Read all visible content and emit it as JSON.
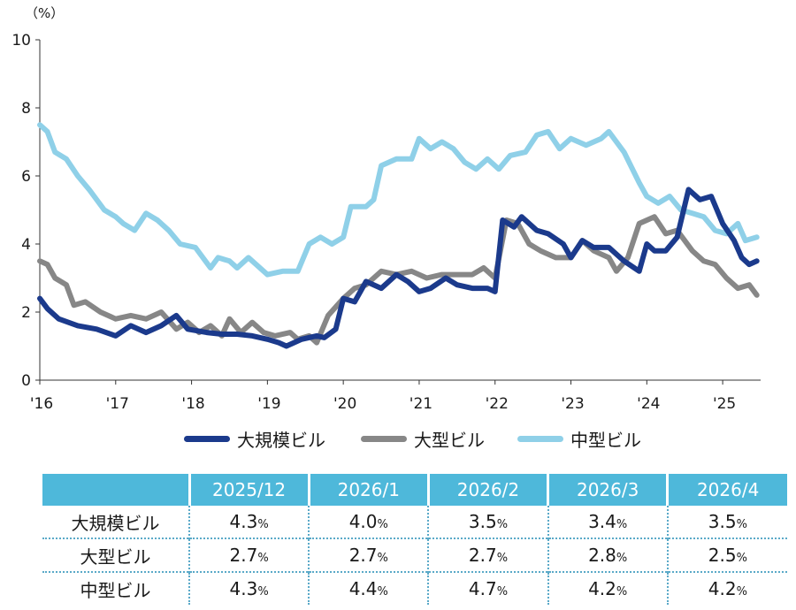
{
  "chart_data": {
    "type": "line",
    "unit_label": "（%）",
    "ylim": [
      0,
      10
    ],
    "y_ticks": [
      "0",
      "2",
      "4",
      "6",
      "8",
      "10"
    ],
    "x_ticks": [
      "'16",
      "'17",
      "'18",
      "'19",
      "'20",
      "'21",
      "'22",
      "'23",
      "'24",
      "'25"
    ],
    "x_start": 2016.0,
    "x_end": 2025.5,
    "grid": false,
    "legend_position": "bottom",
    "series": [
      {
        "name": "大規模ビル",
        "color": "#1b3a8c",
        "points": [
          [
            2016.0,
            2.4
          ],
          [
            2016.1,
            2.1
          ],
          [
            2016.25,
            1.8
          ],
          [
            2016.5,
            1.6
          ],
          [
            2016.75,
            1.5
          ],
          [
            2017.0,
            1.3
          ],
          [
            2017.2,
            1.6
          ],
          [
            2017.4,
            1.4
          ],
          [
            2017.6,
            1.6
          ],
          [
            2017.8,
            1.9
          ],
          [
            2017.95,
            1.5
          ],
          [
            2018.2,
            1.4
          ],
          [
            2018.4,
            1.35
          ],
          [
            2018.6,
            1.35
          ],
          [
            2018.8,
            1.3
          ],
          [
            2019.0,
            1.2
          ],
          [
            2019.15,
            1.1
          ],
          [
            2019.25,
            1.0
          ],
          [
            2019.45,
            1.2
          ],
          [
            2019.65,
            1.3
          ],
          [
            2019.75,
            1.25
          ],
          [
            2019.9,
            1.5
          ],
          [
            2020.0,
            2.4
          ],
          [
            2020.15,
            2.3
          ],
          [
            2020.3,
            2.9
          ],
          [
            2020.5,
            2.7
          ],
          [
            2020.7,
            3.1
          ],
          [
            2020.85,
            2.9
          ],
          [
            2021.0,
            2.6
          ],
          [
            2021.15,
            2.7
          ],
          [
            2021.35,
            3.0
          ],
          [
            2021.5,
            2.8
          ],
          [
            2021.7,
            2.7
          ],
          [
            2021.9,
            2.7
          ],
          [
            2022.0,
            2.6
          ],
          [
            2022.1,
            4.7
          ],
          [
            2022.25,
            4.5
          ],
          [
            2022.35,
            4.8
          ],
          [
            2022.55,
            4.4
          ],
          [
            2022.7,
            4.3
          ],
          [
            2022.9,
            4.0
          ],
          [
            2023.0,
            3.6
          ],
          [
            2023.15,
            4.1
          ],
          [
            2023.3,
            3.9
          ],
          [
            2023.5,
            3.9
          ],
          [
            2023.7,
            3.5
          ],
          [
            2023.9,
            3.2
          ],
          [
            2024.0,
            4.0
          ],
          [
            2024.1,
            3.8
          ],
          [
            2024.25,
            3.8
          ],
          [
            2024.4,
            4.2
          ],
          [
            2024.55,
            5.6
          ],
          [
            2024.7,
            5.3
          ],
          [
            2024.85,
            5.4
          ],
          [
            2025.0,
            4.6
          ],
          [
            2025.15,
            4.1
          ],
          [
            2025.25,
            3.6
          ],
          [
            2025.35,
            3.4
          ],
          [
            2025.45,
            3.5
          ]
        ]
      },
      {
        "name": "大型ビル",
        "color": "#878787",
        "points": [
          [
            2016.0,
            3.5
          ],
          [
            2016.1,
            3.4
          ],
          [
            2016.2,
            3.0
          ],
          [
            2016.35,
            2.8
          ],
          [
            2016.45,
            2.2
          ],
          [
            2016.6,
            2.3
          ],
          [
            2016.8,
            2.0
          ],
          [
            2017.0,
            1.8
          ],
          [
            2017.2,
            1.9
          ],
          [
            2017.4,
            1.8
          ],
          [
            2017.6,
            2.0
          ],
          [
            2017.8,
            1.5
          ],
          [
            2017.95,
            1.7
          ],
          [
            2018.1,
            1.4
          ],
          [
            2018.25,
            1.6
          ],
          [
            2018.4,
            1.3
          ],
          [
            2018.5,
            1.8
          ],
          [
            2018.65,
            1.4
          ],
          [
            2018.8,
            1.7
          ],
          [
            2018.95,
            1.4
          ],
          [
            2019.1,
            1.3
          ],
          [
            2019.3,
            1.4
          ],
          [
            2019.4,
            1.2
          ],
          [
            2019.55,
            1.3
          ],
          [
            2019.65,
            1.1
          ],
          [
            2019.8,
            1.9
          ],
          [
            2020.0,
            2.4
          ],
          [
            2020.15,
            2.7
          ],
          [
            2020.3,
            2.8
          ],
          [
            2020.5,
            3.2
          ],
          [
            2020.7,
            3.1
          ],
          [
            2020.9,
            3.2
          ],
          [
            2021.1,
            3.0
          ],
          [
            2021.3,
            3.1
          ],
          [
            2021.5,
            3.1
          ],
          [
            2021.7,
            3.1
          ],
          [
            2021.85,
            3.3
          ],
          [
            2022.0,
            3.0
          ],
          [
            2022.15,
            4.7
          ],
          [
            2022.3,
            4.6
          ],
          [
            2022.45,
            4.0
          ],
          [
            2022.6,
            3.8
          ],
          [
            2022.8,
            3.6
          ],
          [
            2023.0,
            3.6
          ],
          [
            2023.15,
            4.1
          ],
          [
            2023.3,
            3.8
          ],
          [
            2023.5,
            3.6
          ],
          [
            2023.6,
            3.2
          ],
          [
            2023.75,
            3.6
          ],
          [
            2023.9,
            4.6
          ],
          [
            2024.1,
            4.8
          ],
          [
            2024.25,
            4.3
          ],
          [
            2024.4,
            4.4
          ],
          [
            2024.6,
            3.8
          ],
          [
            2024.75,
            3.5
          ],
          [
            2024.9,
            3.4
          ],
          [
            2025.05,
            3.0
          ],
          [
            2025.2,
            2.7
          ],
          [
            2025.35,
            2.8
          ],
          [
            2025.45,
            2.5
          ]
        ]
      },
      {
        "name": "中型ビル",
        "color": "#8fd0e8",
        "points": [
          [
            2016.0,
            7.5
          ],
          [
            2016.1,
            7.3
          ],
          [
            2016.2,
            6.7
          ],
          [
            2016.35,
            6.5
          ],
          [
            2016.5,
            6.0
          ],
          [
            2016.65,
            5.6
          ],
          [
            2016.85,
            5.0
          ],
          [
            2017.0,
            4.8
          ],
          [
            2017.1,
            4.6
          ],
          [
            2017.25,
            4.4
          ],
          [
            2017.4,
            4.9
          ],
          [
            2017.55,
            4.7
          ],
          [
            2017.7,
            4.4
          ],
          [
            2017.85,
            4.0
          ],
          [
            2018.05,
            3.9
          ],
          [
            2018.25,
            3.3
          ],
          [
            2018.35,
            3.6
          ],
          [
            2018.5,
            3.5
          ],
          [
            2018.6,
            3.3
          ],
          [
            2018.75,
            3.6
          ],
          [
            2019.0,
            3.1
          ],
          [
            2019.2,
            3.2
          ],
          [
            2019.4,
            3.2
          ],
          [
            2019.55,
            4.0
          ],
          [
            2019.7,
            4.2
          ],
          [
            2019.85,
            4.0
          ],
          [
            2020.0,
            4.2
          ],
          [
            2020.1,
            5.1
          ],
          [
            2020.3,
            5.1
          ],
          [
            2020.4,
            5.3
          ],
          [
            2020.5,
            6.3
          ],
          [
            2020.7,
            6.5
          ],
          [
            2020.9,
            6.5
          ],
          [
            2021.0,
            7.1
          ],
          [
            2021.15,
            6.8
          ],
          [
            2021.3,
            7.0
          ],
          [
            2021.45,
            6.8
          ],
          [
            2021.6,
            6.4
          ],
          [
            2021.75,
            6.2
          ],
          [
            2021.9,
            6.5
          ],
          [
            2022.05,
            6.2
          ],
          [
            2022.2,
            6.6
          ],
          [
            2022.4,
            6.7
          ],
          [
            2022.55,
            7.2
          ],
          [
            2022.7,
            7.3
          ],
          [
            2022.85,
            6.8
          ],
          [
            2023.0,
            7.1
          ],
          [
            2023.2,
            6.9
          ],
          [
            2023.4,
            7.1
          ],
          [
            2023.5,
            7.3
          ],
          [
            2023.7,
            6.7
          ],
          [
            2023.9,
            5.8
          ],
          [
            2024.0,
            5.4
          ],
          [
            2024.15,
            5.2
          ],
          [
            2024.3,
            5.4
          ],
          [
            2024.45,
            5.0
          ],
          [
            2024.6,
            4.9
          ],
          [
            2024.75,
            4.8
          ],
          [
            2024.9,
            4.4
          ],
          [
            2025.05,
            4.3
          ],
          [
            2025.2,
            4.6
          ],
          [
            2025.3,
            4.1
          ],
          [
            2025.45,
            4.2
          ]
        ]
      }
    ]
  },
  "table": {
    "headers": [
      "",
      "2025/12",
      "2026/1",
      "2026/2",
      "2026/3",
      "2026/4"
    ],
    "pct_symbol": "%",
    "rows": [
      {
        "label": "大規模ビル",
        "values": [
          "4.3",
          "4.0",
          "3.5",
          "3.4",
          "3.5"
        ]
      },
      {
        "label": "大型ビル",
        "values": [
          "2.7",
          "2.7",
          "2.7",
          "2.8",
          "2.5"
        ]
      },
      {
        "label": "中型ビル",
        "values": [
          "4.3",
          "4.4",
          "4.7",
          "4.2",
          "4.2"
        ]
      }
    ]
  }
}
